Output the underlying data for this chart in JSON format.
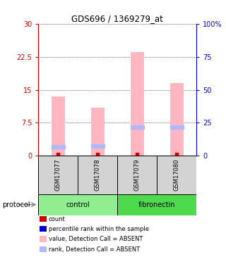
{
  "title": "GDS696 / 1369279_at",
  "samples": [
    "GSM17077",
    "GSM17078",
    "GSM17079",
    "GSM17080"
  ],
  "groups": [
    "control",
    "control",
    "fibronectin",
    "fibronectin"
  ],
  "group_labels": [
    "control",
    "fibronectin"
  ],
  "sample_bg_color": "#d3d3d3",
  "pink_bar_values": [
    13.5,
    11.0,
    23.5,
    16.5
  ],
  "blue_marker_values": [
    2.0,
    2.2,
    6.5,
    6.5
  ],
  "red_dot_values": [
    0.3,
    0.3,
    0.3,
    0.3
  ],
  "ylim_left": [
    0,
    30
  ],
  "ylim_right": [
    0,
    100
  ],
  "yticks_left": [
    0,
    7.5,
    15,
    22.5,
    30
  ],
  "yticks_right": [
    0,
    25,
    50,
    75,
    100
  ],
  "ytick_labels_right": [
    "0",
    "25",
    "50",
    "75",
    "100%"
  ],
  "left_axis_color": "#cc0000",
  "right_axis_color": "#0000cc",
  "pink_color": "#ffb6c1",
  "blue_marker_color": "#b0b8ff",
  "red_dot_color": "#cc0000",
  "bar_width": 0.35,
  "control_color": "#90ee90",
  "fibronectin_color": "#4ddb4d",
  "legend_items": [
    {
      "color": "#cc0000",
      "label": "count"
    },
    {
      "color": "#0000cc",
      "label": "percentile rank within the sample"
    },
    {
      "color": "#ffb6c1",
      "label": "value, Detection Call = ABSENT"
    },
    {
      "color": "#b0b8ff",
      "label": "rank, Detection Call = ABSENT"
    }
  ],
  "protocol_label": "protocol"
}
